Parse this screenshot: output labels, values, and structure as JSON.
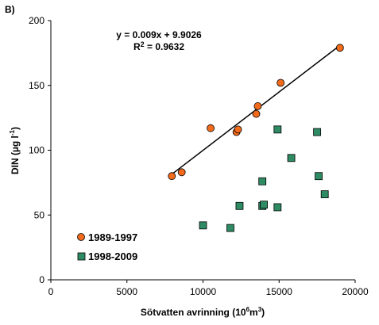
{
  "chart_data": {
    "type": "scatter",
    "panel_label": "B)",
    "xlabel": "Sötvatten avrinning (10",
    "xlabel_sup": "6",
    "xlabel_unit": "m",
    "xlabel_unit_sup": "3",
    "xlabel_end": ")",
    "ylabel": "DIN (µg l",
    "ylabel_sup": "-1",
    "ylabel_end": ")",
    "xlim": [
      0,
      20000
    ],
    "ylim": [
      0,
      200
    ],
    "xticks": [
      0,
      5000,
      10000,
      15000,
      20000
    ],
    "yticks": [
      0,
      50,
      100,
      150,
      200
    ],
    "xtick_labels": [
      "0",
      "5000",
      "10000",
      "15000",
      "20000"
    ],
    "ytick_labels": [
      "0",
      "50",
      "100",
      "150",
      "200"
    ],
    "grid": false,
    "legend_position": "bottom-left",
    "series": [
      {
        "name": "1989-1997",
        "marker": "circle",
        "color": "#f26a1b",
        "points": [
          [
            7950,
            80
          ],
          [
            8600,
            83
          ],
          [
            10500,
            117
          ],
          [
            12200,
            114
          ],
          [
            12300,
            116
          ],
          [
            13500,
            128
          ],
          [
            13600,
            134
          ],
          [
            15100,
            152
          ],
          [
            19000,
            179
          ]
        ]
      },
      {
        "name": "1998-2009",
        "marker": "square",
        "color": "#2e8b63",
        "points": [
          [
            10000,
            42
          ],
          [
            11800,
            40
          ],
          [
            12400,
            57
          ],
          [
            13900,
            76
          ],
          [
            13900,
            57
          ],
          [
            14000,
            58
          ],
          [
            14900,
            116
          ],
          [
            14900,
            56
          ],
          [
            15800,
            94
          ],
          [
            17500,
            114
          ],
          [
            17600,
            80
          ],
          [
            18000,
            66
          ]
        ]
      }
    ],
    "trendline": {
      "series": "1989-1997",
      "slope": 0.009,
      "intercept": 9.9026,
      "x_range": [
        7950,
        19000
      ],
      "equation": "y = 0.009x + 9.9026",
      "r2_prefix": "R",
      "r2_sup": "2",
      "r2_value": " = 0.9632"
    }
  }
}
